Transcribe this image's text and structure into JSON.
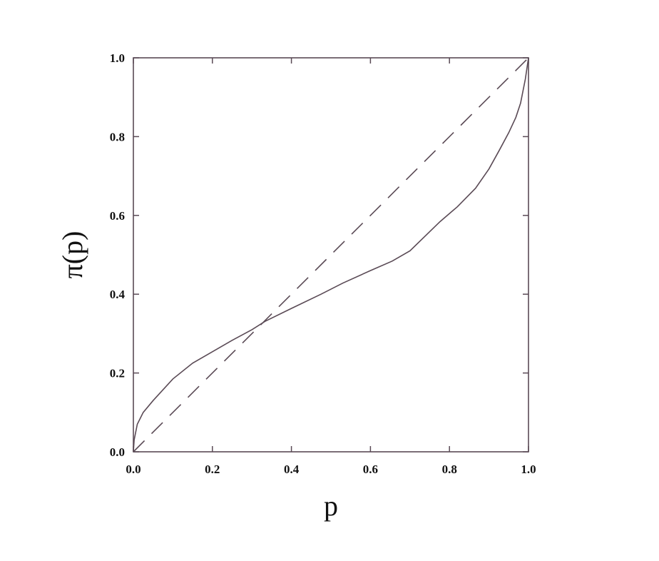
{
  "chart_data": {
    "type": "line",
    "title": "",
    "xlabel": "p",
    "ylabel": "π(p)",
    "xlim": [
      0,
      1
    ],
    "ylim": [
      0,
      1
    ],
    "grid": false,
    "xticks": [
      "0.0",
      "0.2",
      "0.4",
      "0.6",
      "0.8",
      "1.0"
    ],
    "yticks": [
      "0.0",
      "0.2",
      "0.4",
      "0.6",
      "0.8",
      "1.0"
    ],
    "series": [
      {
        "style": "solid",
        "color": "#5a4a55",
        "x": [
          0,
          0.002,
          0.01,
          0.025,
          0.05,
          0.1,
          0.15,
          0.2,
          0.25,
          0.3,
          0.333,
          0.4,
          0.475,
          0.53,
          0.6,
          0.655,
          0.7,
          0.776,
          0.82,
          0.866,
          0.9,
          0.926,
          0.95,
          0.968,
          0.98,
          0.992,
          1.0
        ],
        "y": [
          0,
          0.03,
          0.07,
          0.1,
          0.13,
          0.185,
          0.225,
          0.254,
          0.283,
          0.31,
          0.331,
          0.364,
          0.4,
          0.428,
          0.46,
          0.484,
          0.51,
          0.584,
          0.622,
          0.669,
          0.718,
          0.765,
          0.81,
          0.849,
          0.885,
          0.946,
          1.0
        ]
      },
      {
        "style": "dashed",
        "color": "#5a4a55",
        "x": [
          0,
          1
        ],
        "y": [
          0,
          1
        ]
      }
    ]
  }
}
